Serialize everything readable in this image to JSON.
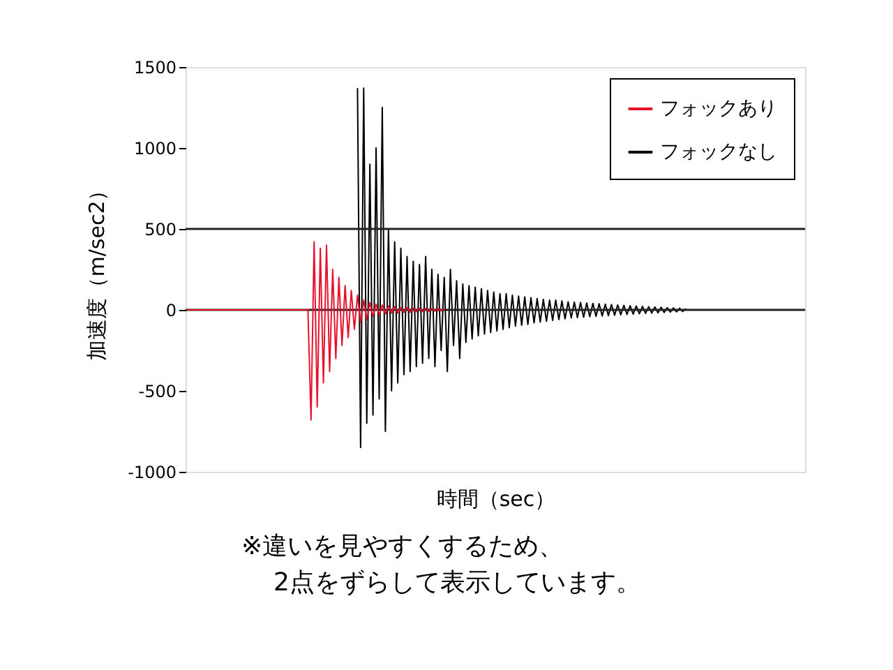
{
  "chart_data": {
    "type": "line",
    "xlabel": "時間（sec）",
    "ylabel": "加速度（m/sec2）",
    "annotations": [
      "※違いを見やすくするため、",
      "2点をずらして表示しています。"
    ],
    "categories": [
      null,
      null,
      null,
      null,
      null,
      null,
      null,
      null,
      null,
      null,
      null,
      null,
      null,
      null,
      null,
      null,
      null,
      null,
      null,
      null,
      null,
      null,
      null,
      null,
      null,
      null,
      null,
      null,
      null,
      null,
      null,
      null,
      null,
      null,
      null,
      null,
      null,
      null,
      null,
      null,
      null,
      null,
      null,
      null,
      null,
      null,
      null,
      null,
      null,
      null,
      null,
      null,
      null,
      null,
      null,
      null,
      null,
      null,
      null,
      null,
      null,
      null,
      null,
      null,
      null,
      null,
      null,
      null,
      null,
      null,
      null,
      null,
      null,
      null,
      null,
      null,
      null,
      null,
      null,
      null,
      null,
      null,
      null,
      null,
      null,
      null,
      null,
      null,
      null,
      null,
      null,
      null,
      null,
      null,
      null,
      null,
      null,
      null,
      null,
      null,
      null,
      null,
      null,
      null,
      null,
      null,
      null,
      null,
      null,
      null,
      null,
      null,
      null,
      null,
      null,
      null,
      null,
      null,
      null,
      null,
      null,
      null,
      null,
      null,
      null,
      null,
      null,
      null,
      null,
      null,
      null,
      null,
      null,
      null,
      null,
      null,
      null,
      null,
      null,
      null,
      null,
      null,
      null,
      null,
      null,
      null,
      null,
      null,
      null,
      null,
      null,
      null,
      null,
      null,
      null,
      null,
      null,
      null,
      null,
      null,
      null,
      null,
      null,
      null,
      null,
      null,
      null,
      null,
      null,
      null,
      null,
      null,
      null,
      null,
      null,
      null,
      null,
      null,
      null,
      null,
      null,
      null,
      null,
      null,
      null,
      null,
      null,
      null,
      null,
      null,
      null,
      null,
      null,
      null,
      null,
      null,
      null,
      null,
      null,
      null
    ],
    "series": [
      {
        "name": "フォックあり",
        "color": "#e8102a",
        "values": [
          0,
          0,
          0,
          0,
          0,
          0,
          0,
          0,
          0,
          0,
          0,
          0,
          0,
          0,
          0,
          0,
          0,
          0,
          0,
          0,
          0,
          0,
          0,
          0,
          0,
          0,
          0,
          0,
          0,
          0,
          0,
          0,
          0,
          0,
          0,
          0,
          0,
          0,
          0,
          0,
          -680,
          420,
          -600,
          380,
          -450,
          400,
          -380,
          250,
          -300,
          200,
          -220,
          150,
          -170,
          120,
          -120,
          90,
          -80,
          60,
          -60,
          45,
          -40,
          35,
          -30,
          30,
          -25,
          25,
          -20,
          20,
          -20,
          15,
          -15,
          15,
          -15,
          12,
          -12,
          12,
          -10,
          10,
          -10,
          8,
          -8,
          8,
          -6,
          5,
          null,
          null,
          null,
          null,
          null,
          null,
          null,
          null,
          null,
          null,
          null,
          null,
          null,
          null,
          null,
          null,
          null,
          null,
          null,
          null,
          null,
          null,
          null,
          null,
          null,
          null,
          null,
          null,
          null,
          null,
          null,
          null,
          null,
          null,
          null,
          null,
          null,
          null,
          null,
          null,
          null,
          null,
          null,
          null,
          null,
          null,
          null,
          null,
          null,
          null,
          null,
          null,
          null,
          null,
          null,
          null,
          null,
          null,
          null,
          null,
          null,
          null,
          null,
          null,
          null,
          null,
          null,
          null,
          null,
          null,
          null,
          null,
          null,
          null,
          null,
          null,
          null,
          null,
          null,
          null,
          null,
          null,
          null,
          null,
          null,
          null,
          null,
          null,
          null,
          null,
          null,
          null,
          null,
          null,
          null,
          null,
          null,
          null,
          null,
          null,
          null,
          null,
          null,
          null,
          null,
          null,
          null,
          null,
          null,
          null,
          null,
          null,
          null,
          null,
          null,
          null
        ]
      },
      {
        "name": "フォックなし",
        "color": "#000000",
        "values": [
          null,
          null,
          null,
          null,
          null,
          null,
          null,
          null,
          null,
          null,
          null,
          null,
          null,
          null,
          null,
          null,
          null,
          null,
          null,
          null,
          null,
          null,
          null,
          null,
          null,
          null,
          null,
          null,
          null,
          null,
          null,
          null,
          null,
          null,
          null,
          null,
          null,
          null,
          null,
          null,
          null,
          null,
          null,
          null,
          null,
          null,
          null,
          null,
          null,
          null,
          null,
          null,
          null,
          null,
          null,
          1370,
          -850,
          1370,
          -700,
          900,
          -650,
          1000,
          -550,
          1250,
          -750,
          500,
          -500,
          420,
          -450,
          380,
          -400,
          330,
          -380,
          300,
          -350,
          280,
          -330,
          330,
          -300,
          250,
          -350,
          220,
          -250,
          200,
          -380,
          250,
          -220,
          180,
          -300,
          160,
          -200,
          150,
          -180,
          140,
          -160,
          130,
          -150,
          120,
          -140,
          110,
          -130,
          100,
          -120,
          100,
          -110,
          90,
          -100,
          85,
          -95,
          80,
          -90,
          75,
          -80,
          70,
          -75,
          65,
          -70,
          60,
          -65,
          60,
          -60,
          55,
          -55,
          50,
          -50,
          48,
          -48,
          45,
          -45,
          42,
          -42,
          40,
          -40,
          38,
          -38,
          35,
          -35,
          33,
          -33,
          30,
          -30,
          28,
          -28,
          26,
          -26,
          24,
          -24,
          22,
          -22,
          20,
          -20,
          18,
          -18,
          16,
          -16,
          14,
          -14,
          12,
          -12,
          10,
          -10,
          8,
          null,
          null,
          null,
          null,
          null,
          null,
          null,
          null,
          null,
          null,
          null,
          null,
          null,
          null,
          null,
          null,
          null,
          null,
          null,
          null,
          null,
          null,
          null,
          null,
          null,
          null,
          null,
          null,
          null,
          null,
          null,
          null,
          null,
          null,
          null,
          null,
          null,
          null
        ]
      }
    ],
    "ylim": [
      -1000,
      1500
    ],
    "yticks": [
      -1000,
      -500,
      0,
      500,
      1000,
      1500
    ],
    "ref_lines": [
      {
        "axis": "y",
        "value": 500,
        "color": "#222222"
      },
      {
        "axis": "y",
        "value": 0,
        "color": "#222222"
      }
    ],
    "legend": "top right",
    "tick_labels": "y"
  }
}
